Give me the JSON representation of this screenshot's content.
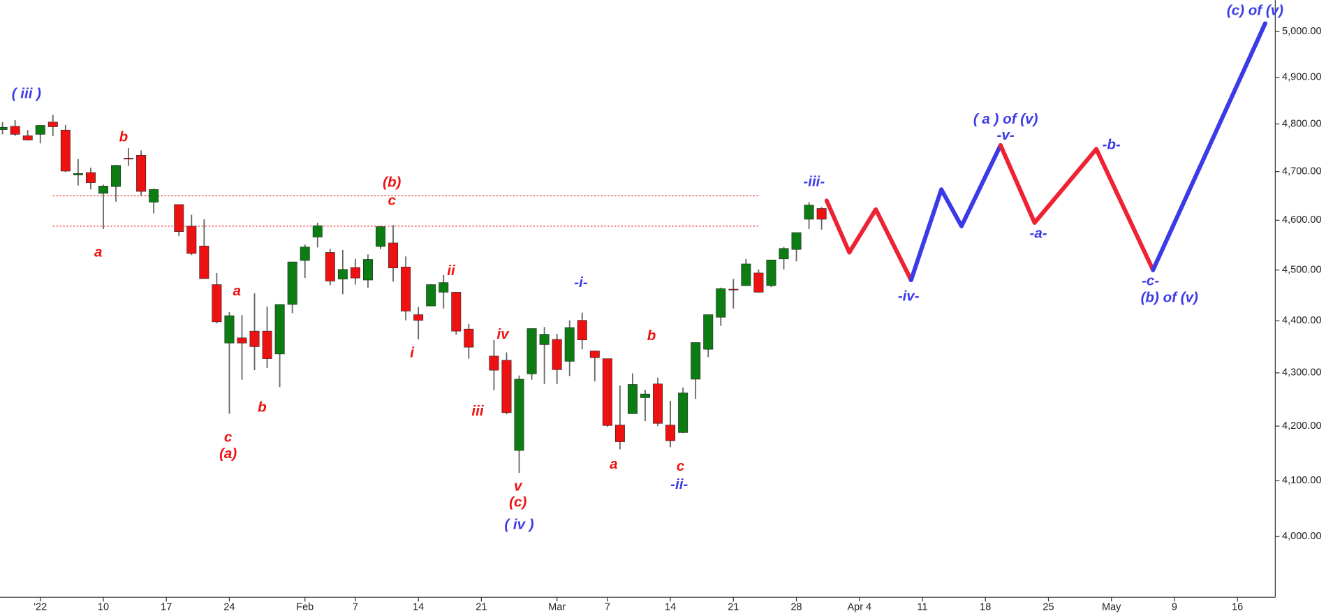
{
  "chart_data": {
    "type": "candlestick",
    "log_scale": true,
    "up_color": "#0b7d12",
    "down_color": "#ee1111",
    "wick_color": "#666666",
    "x": [
      -3,
      -2,
      -1,
      0,
      1,
      2,
      3,
      4,
      5,
      6,
      7,
      8,
      9,
      11,
      12,
      13,
      14,
      15,
      16,
      17,
      18,
      19,
      20,
      21,
      22,
      23,
      24,
      25,
      26,
      27,
      28,
      29,
      30,
      31,
      32,
      33,
      34,
      36,
      37,
      38,
      39,
      40,
      41,
      42,
      43,
      44,
      45,
      46,
      47,
      48,
      49,
      50,
      51,
      52,
      53,
      54,
      55,
      56,
      57,
      58,
      59,
      60,
      61,
      62
    ],
    "open": [
      4788,
      4795,
      4775,
      4778,
      4804,
      4787,
      4693,
      4698,
      4655,
      4669,
      4728,
      4734,
      4637,
      4632,
      4588,
      4548,
      4471,
      4357,
      4367,
      4380,
      4380,
      4336,
      4432,
      4519,
      4566,
      4535,
      4482,
      4505,
      4480,
      4547,
      4554,
      4506,
      4412,
      4429,
      4456,
      4456,
      4384,
      4332,
      4324,
      4155,
      4298,
      4354,
      4364,
      4322,
      4401,
      4342,
      4327,
      4202,
      4223,
      4253,
      4279,
      4202,
      4188,
      4288,
      4345,
      4407,
      4462,
      4469,
      4494,
      4469,
      4522,
      4541,
      4602,
      4624
    ],
    "high": [
      4804,
      4808,
      4787,
      4797,
      4819,
      4798,
      4726,
      4708,
      4673,
      4714,
      4749,
      4744,
      4665,
      4632,
      4611,
      4602,
      4494,
      4417,
      4411,
      4454,
      4428,
      4432,
      4516,
      4551,
      4595,
      4542,
      4540,
      4522,
      4531,
      4588,
      4590,
      4527,
      4427,
      4472,
      4490,
      4456,
      4394,
      4363,
      4339,
      4295,
      4385,
      4388,
      4375,
      4401,
      4416,
      4342,
      4327,
      4276,
      4299,
      4268,
      4291,
      4247,
      4272,
      4358,
      4412,
      4465,
      4482,
      4522,
      4501,
      4520,
      4546,
      4575,
      4637,
      4627
    ],
    "low": [
      4778,
      4775,
      4765,
      4759,
      4774,
      4699,
      4671,
      4663,
      4582,
      4638,
      4712,
      4650,
      4614,
      4568,
      4530,
      4483,
      4395,
      4223,
      4287,
      4305,
      4309,
      4273,
      4415,
      4484,
      4545,
      4470,
      4452,
      4471,
      4465,
      4542,
      4477,
      4401,
      4364,
      4429,
      4424,
      4373,
      4327,
      4267,
      4222,
      4114,
      4287,
      4279,
      4279,
      4294,
      4345,
      4284,
      4199,
      4157,
      4223,
      4209,
      4200,
      4161,
      4187,
      4251,
      4330,
      4390,
      4424,
      4469,
      4455,
      4466,
      4501,
      4517,
      4582,
      4581
    ],
    "close": [
      4793,
      4778,
      4766,
      4797,
      4794,
      4701,
      4696,
      4677,
      4670,
      4713,
      4726,
      4659,
      4663,
      4577,
      4533,
      4483,
      4398,
      4410,
      4357,
      4350,
      4327,
      4432,
      4516,
      4546,
      4589,
      4478,
      4501,
      4484,
      4521,
      4587,
      4504,
      4419,
      4401,
      4471,
      4475,
      4380,
      4349,
      4305,
      4225,
      4288,
      4385,
      4374,
      4306,
      4387,
      4363,
      4329,
      4201,
      4171,
      4278,
      4260,
      4205,
      4173,
      4262,
      4358,
      4412,
      4463,
      4461,
      4512,
      4456,
      4520,
      4543,
      4575,
      4631,
      4602
    ],
    "projection": [
      {
        "color": "#ee2233",
        "x": [
          62.4,
          64.2,
          66.3,
          69.1
        ],
        "values": [
          4640,
          4535,
          4622,
          4480
        ]
      },
      {
        "color": "#3a3ae8",
        "x": [
          69.1,
          71.5,
          73.1,
          76.2
        ],
        "values": [
          4480,
          4663,
          4588,
          4755
        ]
      },
      {
        "color": "#ee2233",
        "x": [
          76.2,
          78.9,
          83.8,
          88.3
        ],
        "values": [
          4755,
          4595,
          4747,
          4500
        ]
      },
      {
        "color": "#3a3ae8",
        "x": [
          88.3,
          97.2
        ],
        "values": [
          4500,
          5018
        ]
      }
    ],
    "hlines": [
      {
        "value": 4650,
        "x": [
          1,
          57
        ],
        "color": "#ee1111"
      },
      {
        "value": 4588,
        "x": [
          1,
          57
        ],
        "color": "#ee1111"
      }
    ],
    "annotations": [
      {
        "text": "( iii )",
        "x": -1.1,
        "y": 4863,
        "color": "#3a3ae8"
      },
      {
        "text": "b",
        "x": 6.6,
        "y": 4771,
        "color": "#ee1111"
      },
      {
        "text": "a",
        "x": 4.6,
        "y": 4534,
        "color": "#ee1111"
      },
      {
        "text": "a",
        "x": 15.6,
        "y": 4457,
        "color": "#ee1111"
      },
      {
        "text": "b",
        "x": 17.6,
        "y": 4234,
        "color": "#ee1111"
      },
      {
        "text": "c",
        "x": 14.9,
        "y": 4178,
        "color": "#ee1111"
      },
      {
        "text": "(a)",
        "x": 14.9,
        "y": 4148,
        "color": "#ee1111"
      },
      {
        "text": "(b)",
        "x": 27.9,
        "y": 4676,
        "color": "#ee1111"
      },
      {
        "text": "c",
        "x": 27.9,
        "y": 4639,
        "color": "#ee1111"
      },
      {
        "text": "ii",
        "x": 32.6,
        "y": 4497,
        "color": "#ee1111"
      },
      {
        "text": "i",
        "x": 29.5,
        "y": 4337,
        "color": "#ee1111"
      },
      {
        "text": "iv",
        "x": 36.7,
        "y": 4373,
        "color": "#ee1111"
      },
      {
        "text": "iii",
        "x": 34.7,
        "y": 4227,
        "color": "#ee1111"
      },
      {
        "text": "v",
        "x": 37.9,
        "y": 4089,
        "color": "#ee1111"
      },
      {
        "text": "(c)",
        "x": 37.9,
        "y": 4060,
        "color": "#ee1111"
      },
      {
        "text": "( iv )",
        "x": 38,
        "y": 4020,
        "color": "#3a3ae8"
      },
      {
        "text": "-i-",
        "x": 42.9,
        "y": 4474,
        "color": "#3a3ae8"
      },
      {
        "text": "b",
        "x": 48.5,
        "y": 4370,
        "color": "#ee1111"
      },
      {
        "text": "a",
        "x": 45.5,
        "y": 4129,
        "color": "#ee1111"
      },
      {
        "text": "c",
        "x": 50.8,
        "y": 4125,
        "color": "#ee1111"
      },
      {
        "text": "-ii-",
        "x": 50.7,
        "y": 4092,
        "color": "#3a3ae8"
      },
      {
        "text": "-iii-",
        "x": 61.4,
        "y": 4678,
        "color": "#3a3ae8"
      },
      {
        "text": "-iv-",
        "x": 68.9,
        "y": 4447,
        "color": "#3a3ae8"
      },
      {
        "text": "( a ) of (v)",
        "x": 76.6,
        "y": 4809,
        "color": "#3a3ae8"
      },
      {
        "text": "-v-",
        "x": 76.6,
        "y": 4775,
        "color": "#3a3ae8"
      },
      {
        "text": "-a-",
        "x": 79.2,
        "y": 4572,
        "color": "#3a3ae8"
      },
      {
        "text": "-b-",
        "x": 85,
        "y": 4755,
        "color": "#3a3ae8"
      },
      {
        "text": "-c-",
        "x": 88.1,
        "y": 4477,
        "color": "#3a3ae8"
      },
      {
        "text": "(b) of (v)",
        "x": 89.6,
        "y": 4444,
        "color": "#3a3ae8"
      },
      {
        "text": "(c) of (v)",
        "x": 96.4,
        "y": 5045,
        "color": "#3a3ae8"
      }
    ],
    "xlim": [
      -3.2,
      98
    ],
    "xticks": [
      {
        "value": 0,
        "label": "'22"
      },
      {
        "value": 5,
        "label": "10"
      },
      {
        "value": 10,
        "label": "17"
      },
      {
        "value": 15,
        "label": "24"
      },
      {
        "value": 21,
        "label": "Feb"
      },
      {
        "value": 25,
        "label": "7"
      },
      {
        "value": 30,
        "label": "14"
      },
      {
        "value": 35,
        "label": "21"
      },
      {
        "value": 41,
        "label": "Mar"
      },
      {
        "value": 45,
        "label": "7"
      },
      {
        "value": 50,
        "label": "14"
      },
      {
        "value": 55,
        "label": "21"
      },
      {
        "value": 60,
        "label": "28"
      },
      {
        "value": 65,
        "label": "Apr 4"
      },
      {
        "value": 70,
        "label": "11"
      },
      {
        "value": 75,
        "label": "18"
      },
      {
        "value": 80,
        "label": "25"
      },
      {
        "value": 85,
        "label": "May"
      },
      {
        "value": 90,
        "label": "9"
      },
      {
        "value": 95,
        "label": "16"
      }
    ],
    "ylim": [
      3894,
      5070
    ],
    "yticks": [
      {
        "value": 4000,
        "label": "4,000.00"
      },
      {
        "value": 4100,
        "label": "4,100.00"
      },
      {
        "value": 4200,
        "label": "4,200.00"
      },
      {
        "value": 4300,
        "label": "4,300.00"
      },
      {
        "value": 4400,
        "label": "4,400.00"
      },
      {
        "value": 4500,
        "label": "4,500.00"
      },
      {
        "value": 4600,
        "label": "4,600.00"
      },
      {
        "value": 4700,
        "label": "4,700.00"
      },
      {
        "value": 4800,
        "label": "4,800.00"
      },
      {
        "value": 4900,
        "label": "4,900.00"
      },
      {
        "value": 5000,
        "label": "5,000.00"
      }
    ]
  }
}
